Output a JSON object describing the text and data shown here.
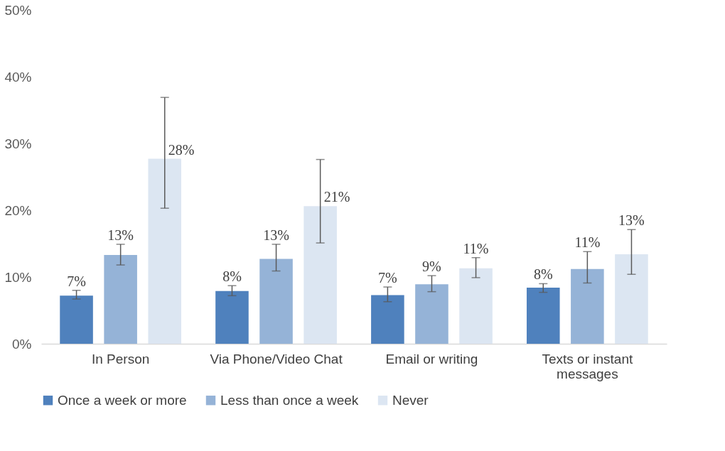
{
  "chart_data": {
    "type": "bar",
    "categories": [
      "In Person",
      "Via Phone/Video Chat",
      "Email or writing",
      "Texts or instant\nmessages"
    ],
    "series": [
      {
        "name": "Once a week or more",
        "color": "#4f81bd",
        "values": [
          7.2,
          7.9,
          7.3,
          8.4
        ],
        "value_labels": [
          "7%",
          "8%",
          "7%",
          "8%"
        ],
        "errors": [
          [
            6.7,
            8.0
          ],
          [
            7.2,
            8.7
          ],
          [
            6.3,
            8.5
          ],
          [
            7.7,
            9.0
          ]
        ]
      },
      {
        "name": "Less than once a week",
        "color": "#95b3d7",
        "values": [
          13.3,
          12.7,
          8.9,
          11.2
        ],
        "value_labels": [
          "13%",
          "13%",
          "9%",
          "11%"
        ],
        "errors": [
          [
            11.8,
            14.9
          ],
          [
            10.9,
            14.9
          ],
          [
            7.8,
            10.2
          ],
          [
            9.1,
            13.8
          ]
        ]
      },
      {
        "name": "Never",
        "color": "#dce6f2",
        "values": [
          27.7,
          20.6,
          11.3,
          13.4
        ],
        "value_labels": [
          "28%",
          "21%",
          "11%",
          "13%"
        ],
        "errors": [
          [
            20.3,
            36.9
          ],
          [
            15.1,
            27.6
          ],
          [
            9.9,
            12.9
          ],
          [
            10.4,
            17.1
          ]
        ]
      }
    ],
    "ylim": [
      0,
      50
    ],
    "yticks": [
      {
        "value": 0,
        "label": "0%"
      },
      {
        "value": 10,
        "label": "10%"
      },
      {
        "value": 20,
        "label": "20%"
      },
      {
        "value": 30,
        "label": "30%"
      },
      {
        "value": 40,
        "label": "40%"
      },
      {
        "value": 50,
        "label": "50%"
      }
    ],
    "grid": false,
    "legend": "bottom"
  }
}
